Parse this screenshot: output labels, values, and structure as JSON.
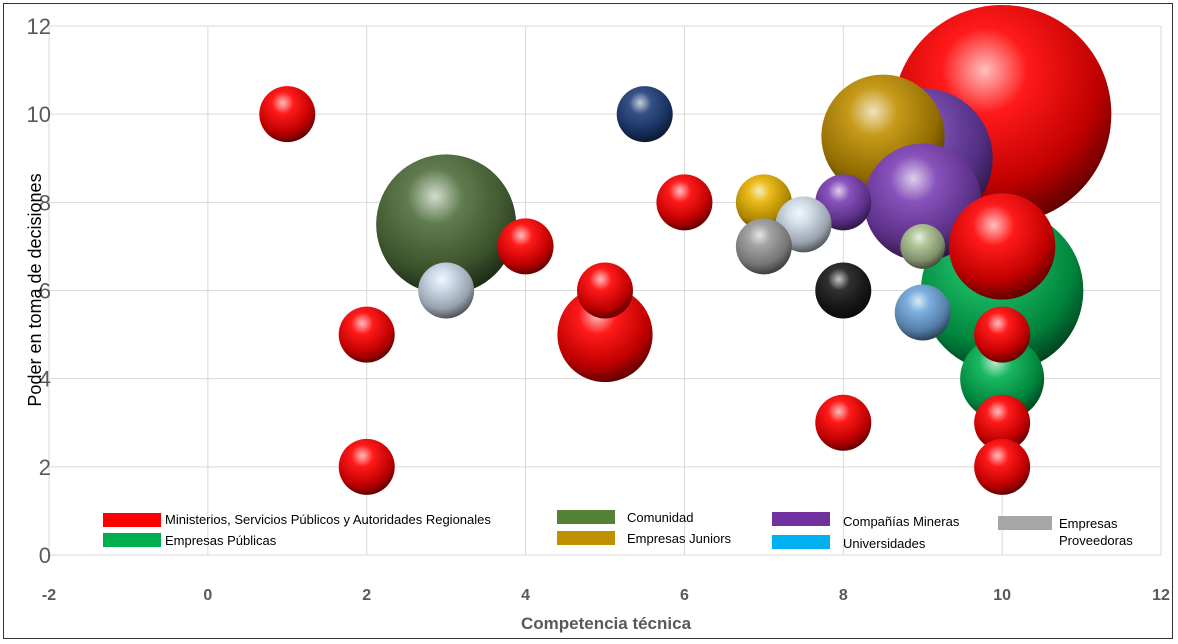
{
  "chart_data": {
    "type": "bubble",
    "title": "",
    "xlabel": "Competencia técnica",
    "ylabel": "Poder en toma de decisiones",
    "xlim": [
      -2,
      12
    ],
    "ylim": [
      0,
      12
    ],
    "xticks": [
      "-2",
      "0",
      "2",
      "4",
      "6",
      "8",
      "10",
      "12"
    ],
    "yticks": [
      "0",
      "2",
      "4",
      "6",
      "8",
      "10",
      "12"
    ],
    "grid": true,
    "legend_position": "bottom",
    "series": [
      {
        "name": "Ministerios, Servicios Públicos y Autoridades Regionales",
        "color": "#ff0000",
        "points": [
          {
            "x": 1,
            "y": 10,
            "size": 1.0
          },
          {
            "x": 2,
            "y": 5,
            "size": 1.0
          },
          {
            "x": 2,
            "y": 2,
            "size": 1.0
          },
          {
            "x": 4,
            "y": 7,
            "size": 1.0
          },
          {
            "x": 5,
            "y": 6,
            "size": 1.0
          },
          {
            "x": 5,
            "y": 5,
            "size": 1.7
          },
          {
            "x": 6,
            "y": 8,
            "size": 1.0
          },
          {
            "x": 8,
            "y": 3,
            "size": 1.0
          },
          {
            "x": 10,
            "y": 10,
            "size": 3.9
          },
          {
            "x": 10,
            "y": 7,
            "size": 1.9
          },
          {
            "x": 10,
            "y": 5,
            "size": 1.0
          },
          {
            "x": 10,
            "y": 3,
            "size": 1.0
          },
          {
            "x": 10,
            "y": 2,
            "size": 1.0
          }
        ]
      },
      {
        "name": "Empresas Públicas",
        "color": "#00b050",
        "points": [
          {
            "x": 10,
            "y": 6,
            "size": 2.9
          },
          {
            "x": 10,
            "y": 4,
            "size": 1.5
          }
        ]
      },
      {
        "name": "Comunidad",
        "color": "#548235",
        "points": [
          {
            "x": 3,
            "y": 7.5,
            "size": 2.5
          },
          {
            "x": 9,
            "y": 7,
            "size": 0.8
          }
        ]
      },
      {
        "name": "Empresas Juniors",
        "color": "#bf9000",
        "points": [
          {
            "x": 8.5,
            "y": 9.5,
            "size": 2.2
          },
          {
            "x": 7,
            "y": 8,
            "size": 1.0
          }
        ]
      },
      {
        "name": "Compañías Mineras",
        "color": "#7030a0",
        "points": [
          {
            "x": 9,
            "y": 9,
            "size": 2.5
          },
          {
            "x": 9,
            "y": 8,
            "size": 2.1
          },
          {
            "x": 8,
            "y": 8,
            "size": 1.0
          }
        ]
      },
      {
        "name": "Universidades",
        "color": "#00b0f0",
        "points": [
          {
            "x": 3,
            "y": 6,
            "size": 1.0
          },
          {
            "x": 7.5,
            "y": 7.5,
            "size": 1.0
          },
          {
            "x": 9,
            "y": 5.5,
            "size": 1.0
          },
          {
            "x": 5.5,
            "y": 10,
            "size": 1.0
          }
        ]
      },
      {
        "name": "Empresas Proveedoras",
        "color": "#a6a6a6",
        "points": [
          {
            "x": 7,
            "y": 7,
            "size": 1.0
          },
          {
            "x": 8,
            "y": 6,
            "size": 1.0
          }
        ]
      }
    ]
  },
  "legend": {
    "items": [
      {
        "label": "Ministerios, Servicios Públicos y Autoridades Regionales",
        "color": "#ff0000"
      },
      {
        "label": "Comunidad",
        "color": "#548235"
      },
      {
        "label": "Compañías Mineras",
        "color": "#7030a0"
      },
      {
        "label": "Empresas Proveedoras",
        "color": "#a6a6a6"
      },
      {
        "label": "Empresas Públicas",
        "color": "#00b050"
      },
      {
        "label": "Empresas Juniors",
        "color": "#bf9000"
      },
      {
        "label": "Universidades",
        "color": "#00b0f0"
      }
    ]
  }
}
